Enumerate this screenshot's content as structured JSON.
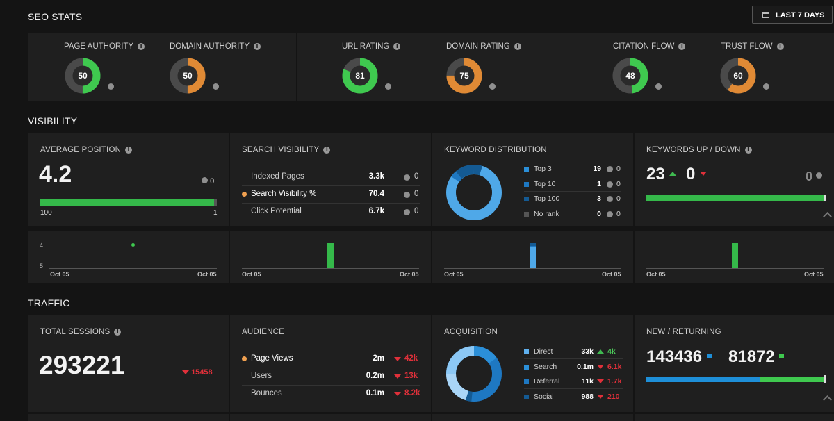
{
  "seo_stats": {
    "title": "SEO STATS",
    "date_button": "LAST 7 DAYS",
    "metrics": [
      {
        "label": "PAGE AUTHORITY",
        "value": "50",
        "color": "#3fc94f",
        "fraction": 0.5
      },
      {
        "label": "DOMAIN AUTHORITY",
        "value": "50",
        "color": "#e08a35",
        "fraction": 0.5
      },
      {
        "label": "URL RATING",
        "value": "81",
        "color": "#3fc94f",
        "fraction": 0.81
      },
      {
        "label": "DOMAIN RATING",
        "value": "75",
        "color": "#e08a35",
        "fraction": 0.75
      },
      {
        "label": "CITATION FLOW",
        "value": "48",
        "color": "#3fc94f",
        "fraction": 0.48
      },
      {
        "label": "TRUST FLOW",
        "value": "60",
        "color": "#e08a35",
        "fraction": 0.6
      }
    ]
  },
  "visibility": {
    "title": "VISIBILITY",
    "avg_position": {
      "label": "AVERAGE POSITION",
      "value": "4.2",
      "change": "0",
      "range_min": "100",
      "range_max": "1",
      "fill": 0.985
    },
    "search_visibility": {
      "label": "SEARCH VISIBILITY",
      "rows": [
        {
          "name": "Indexed Pages",
          "value": "3.3k",
          "change": "0"
        },
        {
          "name": "Search Visibility %",
          "value": "70.4",
          "change": "0"
        },
        {
          "name": "Click Potential",
          "value": "6.7k",
          "change": "0"
        }
      ]
    },
    "keyword_distribution": {
      "label": "KEYWORD DISTRIBUTION",
      "rows": [
        {
          "name": "Top 3",
          "value": "19",
          "change": "0",
          "color": "#2b8fd8"
        },
        {
          "name": "Top 10",
          "value": "1",
          "change": "0",
          "color": "#1e78c2"
        },
        {
          "name": "Top 100",
          "value": "3",
          "change": "0",
          "color": "#145a93"
        },
        {
          "name": "No rank",
          "value": "0",
          "change": "0",
          "color": "#555555"
        }
      ]
    },
    "keywords_up_down": {
      "label": "KEYWORDS UP / DOWN",
      "up": "23",
      "down": "0",
      "change": "0"
    },
    "mini_charts": {
      "date_start": "Oct 05",
      "date_end": "Oct 05",
      "y_top": "4",
      "y_bottom": "5"
    }
  },
  "traffic": {
    "title": "TRAFFIC",
    "total_sessions": {
      "label": "TOTAL SESSIONS",
      "value": "293221",
      "change": "15458"
    },
    "audience": {
      "label": "AUDIENCE",
      "rows": [
        {
          "name": "Page Views",
          "value": "2m",
          "change": "42k"
        },
        {
          "name": "Users",
          "value": "0.2m",
          "change": "13k"
        },
        {
          "name": "Bounces",
          "value": "0.1m",
          "change": "8.2k"
        }
      ]
    },
    "acquisition": {
      "label": "ACQUISITION",
      "rows": [
        {
          "name": "Direct",
          "value": "33k",
          "change": "4k",
          "dir": "up",
          "color": "#5fb0ee"
        },
        {
          "name": "Search",
          "value": "0.1m",
          "change": "6.1k",
          "dir": "down",
          "color": "#2b8fd8"
        },
        {
          "name": "Referral",
          "value": "11k",
          "change": "1.7k",
          "dir": "down",
          "color": "#1e78c2"
        },
        {
          "name": "Social",
          "value": "988",
          "change": "210",
          "dir": "down",
          "color": "#145a93"
        }
      ]
    },
    "new_returning": {
      "label": "NEW / RETURNING",
      "new": "143436",
      "returning": "81872",
      "new_color": "#1e8fd8",
      "returning_color": "#3fc94f",
      "new_fraction": 0.637
    }
  }
}
